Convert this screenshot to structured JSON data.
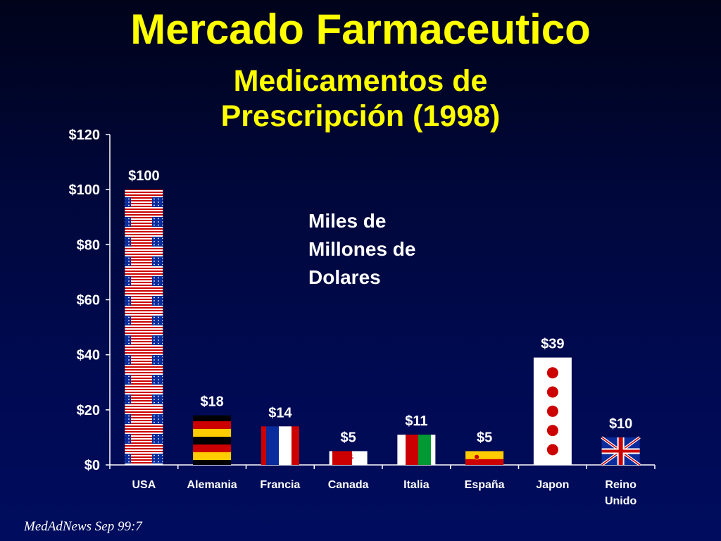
{
  "slide": {
    "title": "Mercado Farmaceutico",
    "subtitle": "Medicamentos de Prescripción (1998)",
    "annotation": "Miles de\nMillones de\nDolares",
    "source": "MedAdNews Sep 99:7"
  },
  "colors": {
    "text": "#ffffff",
    "title": "#ffff00",
    "flag_red": "#cc0000",
    "flag_blue": "#0a2b9c",
    "flag_yellow": "#ffcc00",
    "flag_green": "#009933",
    "white": "#ffffff",
    "black": "#000000"
  },
  "chart_data": {
    "type": "bar",
    "categories": [
      "USA",
      "Alemania",
      "Francia",
      "Canada",
      "Italia",
      "España",
      "Japon",
      "Reino Unido"
    ],
    "values": [
      100,
      18,
      14,
      5,
      11,
      5,
      39,
      10
    ],
    "data_labels": [
      "$100",
      "$18",
      "$14",
      "$5",
      "$11",
      "$5",
      "$39",
      "$10"
    ],
    "bar_patterns": [
      "usa-flag",
      "germany-flag",
      "france-flag",
      "canada-flag",
      "italy-flag",
      "spain-flag",
      "japan-flag",
      "uk-flag"
    ],
    "ylim": [
      0,
      120
    ],
    "yticks": [
      0,
      20,
      40,
      60,
      80,
      100,
      120
    ],
    "ytick_labels": [
      "$0",
      "$20",
      "$40",
      "$60",
      "$80",
      "$100",
      "$120"
    ],
    "xlabel": "",
    "ylabel": "",
    "grid": false,
    "legend": "none"
  }
}
